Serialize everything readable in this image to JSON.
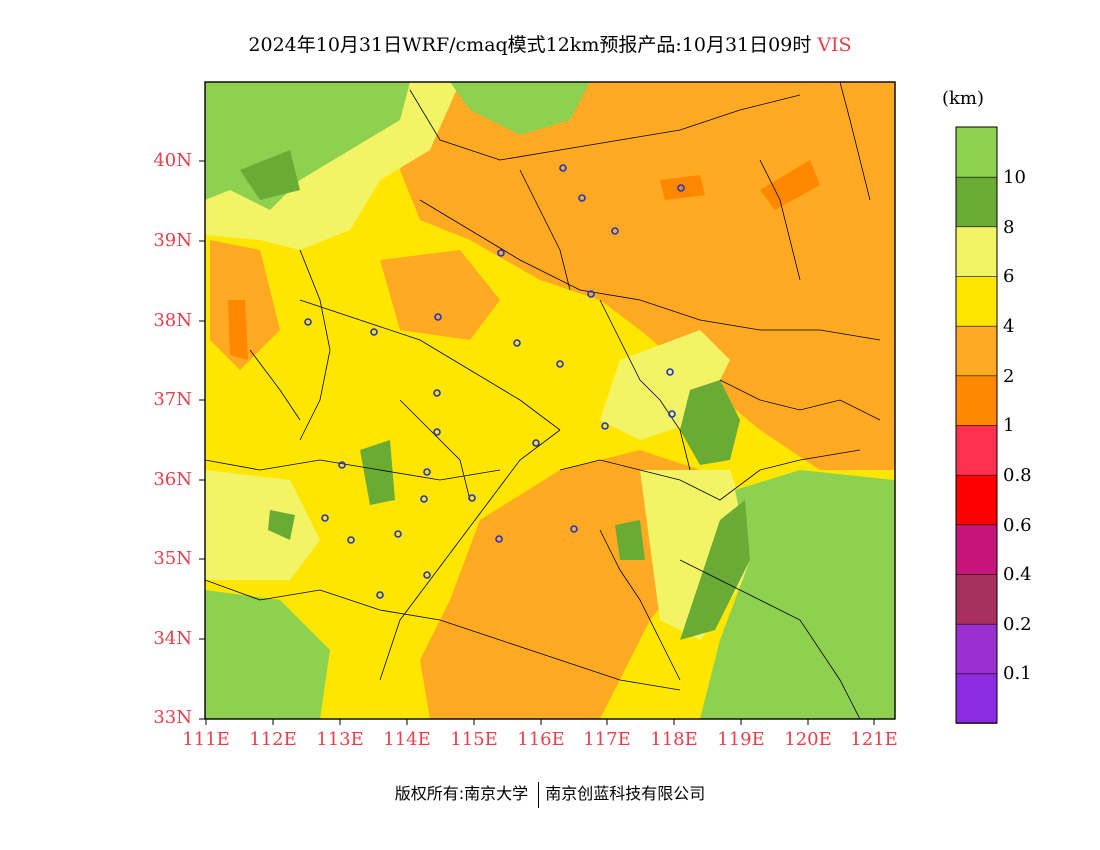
{
  "header": {
    "title": "2024年10月31日WRF/cmaq模式12km预报产品:10月31日09时",
    "variable": "VIS"
  },
  "legend": {
    "unit": "(km)",
    "bins": [
      {
        "color": "#8b2be2",
        "label": "0.1"
      },
      {
        "color": "#9b30d0",
        "label": "0.2"
      },
      {
        "color": "#a83060",
        "label": "0.4"
      },
      {
        "color": "#c8147a",
        "label": "0.6"
      },
      {
        "color": "#ff0000",
        "label": "0.8"
      },
      {
        "color": "#ff3050",
        "label": "1"
      },
      {
        "color": "#ff8800",
        "label": "2"
      },
      {
        "color": "#ffaa22",
        "label": "4"
      },
      {
        "color": "#ffe600",
        "label": "6"
      },
      {
        "color": "#f2f466",
        "label": "8"
      },
      {
        "color": "#6aab35",
        "label": "10"
      },
      {
        "color": "#8ed050",
        "label": ""
      }
    ]
  },
  "axes": {
    "lat_labels": [
      "40N",
      "39N",
      "38N",
      "37N",
      "36N",
      "35N",
      "34N",
      "33N"
    ],
    "lon_labels": [
      "111E",
      "112E",
      "113E",
      "114E",
      "115E",
      "116E",
      "117E",
      "118E",
      "119E",
      "120E",
      "121E"
    ]
  },
  "footer": {
    "left": "版权所有:南京大学",
    "right": "南京创蓝科技有限公司"
  },
  "colors": {
    "label_red": "#e8404a",
    "station_marker": "#2233cc"
  }
}
